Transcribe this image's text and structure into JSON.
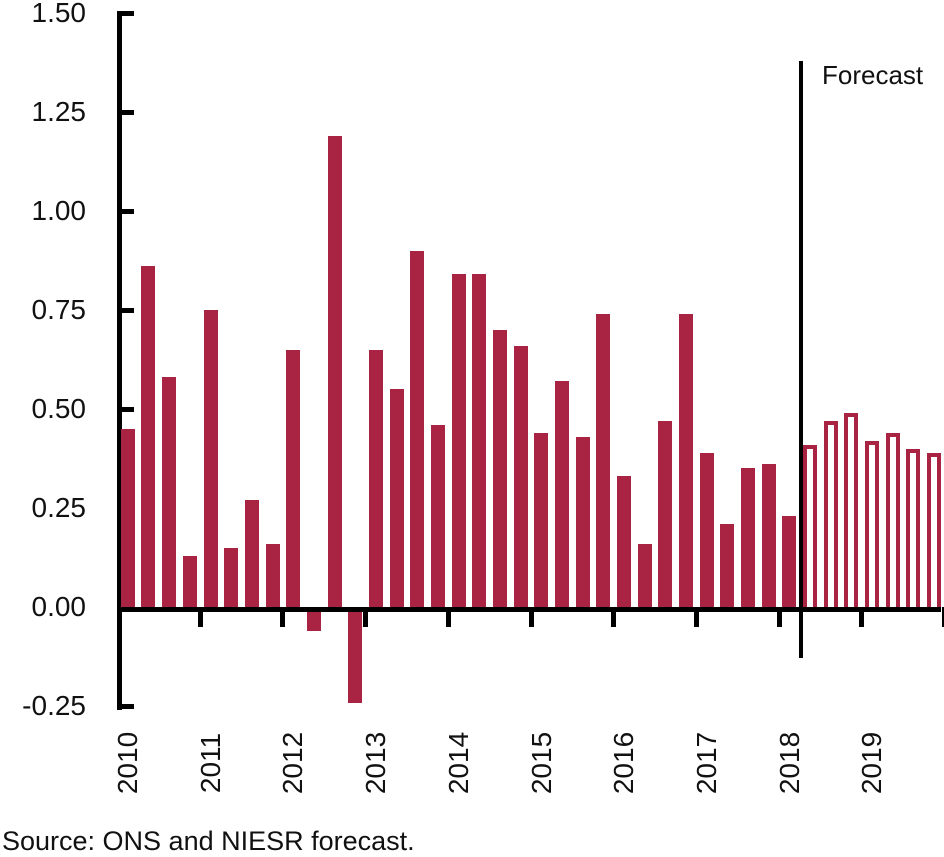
{
  "colors": {
    "bar_fill": "#a92342",
    "forecast_bar_fill": "#ffffff",
    "forecast_bar_outline": "#a92342",
    "axis": "#000000",
    "text": "#111111",
    "background": "#ffffff"
  },
  "chart_data": {
    "type": "bar",
    "title": "",
    "xlabel": "",
    "ylabel": "",
    "ylim": [
      -0.25,
      1.5
    ],
    "ytick_step": 0.25,
    "yticks": [
      1.5,
      1.25,
      1.0,
      0.75,
      0.5,
      0.25,
      0.0,
      -0.25
    ],
    "grid": false,
    "legend_position": "none",
    "years": [
      "2010",
      "2011",
      "2012",
      "2013",
      "2014",
      "2015",
      "2016",
      "2017",
      "2018",
      "2019"
    ],
    "annotation": "Forecast",
    "divider_after_quarter": "2018 Q1",
    "source": "Source: ONS and NIESR forecast.",
    "bars": [
      {
        "quarter": "2010 Q1",
        "value": 0.45,
        "forecast": false
      },
      {
        "quarter": "2010 Q2",
        "value": 0.86,
        "forecast": false
      },
      {
        "quarter": "2010 Q3",
        "value": 0.58,
        "forecast": false
      },
      {
        "quarter": "2010 Q4",
        "value": 0.13,
        "forecast": false
      },
      {
        "quarter": "2011 Q1",
        "value": 0.75,
        "forecast": false
      },
      {
        "quarter": "2011 Q2",
        "value": 0.15,
        "forecast": false
      },
      {
        "quarter": "2011 Q3",
        "value": 0.27,
        "forecast": false
      },
      {
        "quarter": "2011 Q4",
        "value": 0.16,
        "forecast": false
      },
      {
        "quarter": "2012 Q1",
        "value": 0.65,
        "forecast": false
      },
      {
        "quarter": "2012 Q2",
        "value": -0.06,
        "forecast": false
      },
      {
        "quarter": "2012 Q3",
        "value": 1.19,
        "forecast": false
      },
      {
        "quarter": "2012 Q4",
        "value": -0.24,
        "forecast": false
      },
      {
        "quarter": "2013 Q1",
        "value": 0.65,
        "forecast": false
      },
      {
        "quarter": "2013 Q2",
        "value": 0.55,
        "forecast": false
      },
      {
        "quarter": "2013 Q3",
        "value": 0.9,
        "forecast": false
      },
      {
        "quarter": "2013 Q4",
        "value": 0.46,
        "forecast": false
      },
      {
        "quarter": "2014 Q1",
        "value": 0.84,
        "forecast": false
      },
      {
        "quarter": "2014 Q2",
        "value": 0.84,
        "forecast": false
      },
      {
        "quarter": "2014 Q3",
        "value": 0.7,
        "forecast": false
      },
      {
        "quarter": "2014 Q4",
        "value": 0.66,
        "forecast": false
      },
      {
        "quarter": "2015 Q1",
        "value": 0.44,
        "forecast": false
      },
      {
        "quarter": "2015 Q2",
        "value": 0.57,
        "forecast": false
      },
      {
        "quarter": "2015 Q3",
        "value": 0.43,
        "forecast": false
      },
      {
        "quarter": "2015 Q4",
        "value": 0.74,
        "forecast": false
      },
      {
        "quarter": "2016 Q1",
        "value": 0.33,
        "forecast": false
      },
      {
        "quarter": "2016 Q2",
        "value": 0.16,
        "forecast": false
      },
      {
        "quarter": "2016 Q3",
        "value": 0.47,
        "forecast": false
      },
      {
        "quarter": "2016 Q4",
        "value": 0.74,
        "forecast": false
      },
      {
        "quarter": "2017 Q1",
        "value": 0.39,
        "forecast": false
      },
      {
        "quarter": "2017 Q2",
        "value": 0.21,
        "forecast": false
      },
      {
        "quarter": "2017 Q3",
        "value": 0.35,
        "forecast": false
      },
      {
        "quarter": "2017 Q4",
        "value": 0.36,
        "forecast": false
      },
      {
        "quarter": "2018 Q1",
        "value": 0.23,
        "forecast": false
      },
      {
        "quarter": "2018 Q2",
        "value": 0.41,
        "forecast": true
      },
      {
        "quarter": "2018 Q3",
        "value": 0.47,
        "forecast": true
      },
      {
        "quarter": "2018 Q4",
        "value": 0.49,
        "forecast": true
      },
      {
        "quarter": "2019 Q1",
        "value": 0.42,
        "forecast": true
      },
      {
        "quarter": "2019 Q2",
        "value": 0.44,
        "forecast": true
      },
      {
        "quarter": "2019 Q3",
        "value": 0.4,
        "forecast": true
      },
      {
        "quarter": "2019 Q4",
        "value": 0.39,
        "forecast": true
      }
    ]
  }
}
